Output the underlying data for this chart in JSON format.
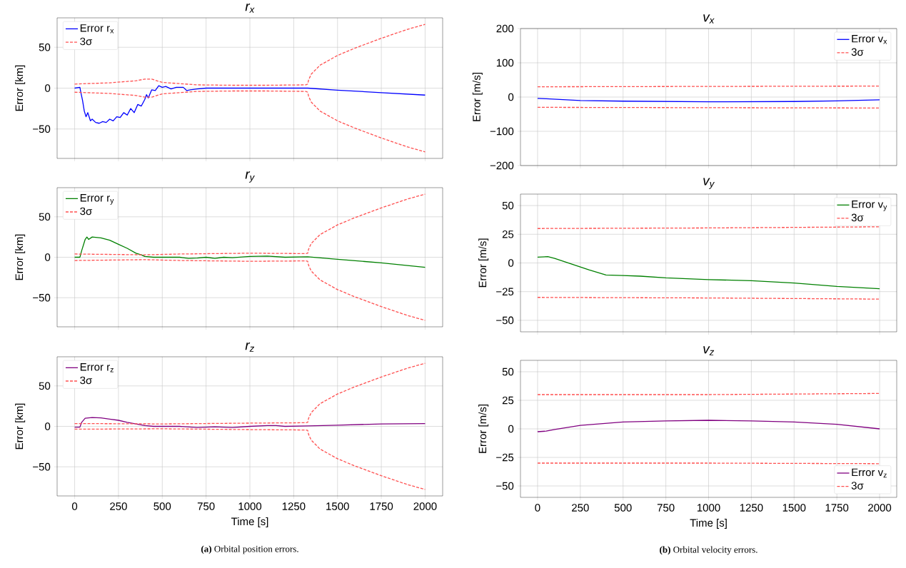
{
  "chart_data": [
    {
      "type": "line",
      "title": "r$_{x}$",
      "ylabel": "Error [km]",
      "xlim": [
        -100,
        2100
      ],
      "ylim": [
        -86,
        86
      ],
      "xticks": [
        0,
        250,
        500,
        750,
        1000,
        1250,
        1500,
        1750,
        2000
      ],
      "yticks": [
        {
          "value": -50,
          "label": "−50"
        },
        0,
        50
      ],
      "grid": true,
      "legend": "top left",
      "tick_labels": "y",
      "series": [
        {
          "name": "Error r$_{x}$",
          "color": "#0000ff",
          "line_style": "solid",
          "x": [
            0,
            30,
            35,
            45,
            55,
            65,
            75,
            90,
            100,
            120,
            140,
            160,
            180,
            200,
            220,
            240,
            260,
            280,
            300,
            320,
            340,
            360,
            380,
            400,
            410,
            420,
            440,
            460,
            480,
            500,
            520,
            550,
            580,
            620,
            640,
            660,
            700,
            750,
            800,
            900,
            1000,
            1100,
            1200,
            1330,
            1500,
            1750,
            2000
          ],
          "values": [
            0,
            1,
            -5,
            -15,
            -28,
            -35,
            -30,
            -40,
            -38,
            -42,
            -43,
            -41,
            -42,
            -38,
            -40,
            -35,
            -36,
            -30,
            -33,
            -25,
            -30,
            -20,
            -22,
            -14,
            -8,
            -12,
            -2,
            -3,
            3,
            1,
            2,
            -1,
            1,
            1,
            -3,
            -2,
            -1,
            0,
            0,
            0,
            0,
            0,
            0,
            0,
            -2.5,
            -5.5,
            -8.5
          ]
        },
        {
          "name": "3σ",
          "color": "#ff5050",
          "line_style": "dashed",
          "x": [
            0,
            200,
            350,
            400,
            440,
            500,
            700,
            900,
            1100,
            1320,
            1330,
            1335,
            1350,
            1400,
            1500,
            1600,
            1750,
            1900,
            2000
          ],
          "values": [
            5,
            6.5,
            9,
            11,
            11,
            7,
            4,
            3.5,
            3.5,
            4,
            5,
            10,
            17,
            28,
            40,
            49,
            61,
            72,
            78
          ]
        },
        {
          "color": "#ff5050",
          "line_style": "dashed",
          "x": [
            0,
            200,
            350,
            400,
            440,
            500,
            700,
            900,
            1100,
            1320,
            1330,
            1335,
            1350,
            1400,
            1500,
            1600,
            1750,
            1900,
            2000
          ],
          "values": [
            -5,
            -6.5,
            -9,
            -11,
            -11,
            -7,
            -4,
            -3.5,
            -3.5,
            -4,
            -5,
            -10,
            -17,
            -28,
            -40,
            -49,
            -61,
            -72,
            -78
          ]
        }
      ]
    },
    {
      "type": "line",
      "title": "r$_{y}$",
      "ylabel": "Error [km]",
      "xlim": [
        -100,
        2100
      ],
      "ylim": [
        -86,
        86
      ],
      "xticks": [
        0,
        250,
        500,
        750,
        1000,
        1250,
        1500,
        1750,
        2000
      ],
      "yticks": [
        {
          "value": -50,
          "label": "−50"
        },
        0,
        50
      ],
      "grid": true,
      "legend": "top left",
      "tick_labels": "y",
      "series": [
        {
          "name": "Error r$_{y}$",
          "color": "#008000",
          "line_style": "solid",
          "x": [
            0,
            30,
            40,
            50,
            60,
            70,
            80,
            100,
            150,
            200,
            250,
            300,
            350,
            380,
            400,
            450,
            500,
            600,
            650,
            700,
            750,
            800,
            850,
            900,
            1000,
            1100,
            1200,
            1330,
            1500,
            1750,
            2000
          ],
          "values": [
            0,
            0,
            8,
            15,
            22,
            25,
            22,
            25,
            24,
            21,
            16,
            11,
            5,
            3,
            1,
            0,
            0,
            0,
            -1.5,
            -1,
            0,
            -1.5,
            0,
            -0.5,
            1,
            1.5,
            0,
            0.5,
            -2.5,
            -7,
            -12.5
          ]
        },
        {
          "name": "3σ",
          "color": "#ff5050",
          "line_style": "dashed",
          "x": [
            0,
            400,
            600,
            1000,
            1320,
            1330,
            1335,
            1350,
            1400,
            1500,
            1600,
            1750,
            1900,
            2000
          ],
          "values": [
            4,
            3,
            4,
            5,
            4.5,
            5,
            10,
            17,
            28,
            40,
            49,
            61,
            72,
            78
          ]
        },
        {
          "color": "#ff5050",
          "line_style": "dashed",
          "x": [
            0,
            400,
            600,
            1000,
            1320,
            1330,
            1335,
            1350,
            1400,
            1500,
            1600,
            1750,
            1900,
            2000
          ],
          "values": [
            -4,
            -3,
            -4,
            -5,
            -4.5,
            -5,
            -10,
            -17,
            -28,
            -40,
            -49,
            -61,
            -72,
            -78
          ]
        }
      ]
    },
    {
      "type": "line",
      "title": "r$_{z}$",
      "xlabel": "Time [s]",
      "ylabel": "Error [km]",
      "xlim": [
        -100,
        2100
      ],
      "ylim": [
        -86,
        86
      ],
      "xticks": [
        0,
        250,
        500,
        750,
        1000,
        1250,
        1500,
        1750,
        2000
      ],
      "yticks": [
        {
          "value": -50,
          "label": "−50"
        },
        0,
        50
      ],
      "grid": true,
      "legend": "top left",
      "annotations": [
        "**(a)** Orbital position errors."
      ],
      "series": [
        {
          "name": "Error r$_{z}$",
          "color": "#800080",
          "line_style": "solid",
          "x": [
            0,
            30,
            40,
            60,
            100,
            150,
            200,
            250,
            300,
            350,
            400,
            450,
            600,
            700,
            800,
            900,
            1000,
            1100,
            1150,
            1200,
            1330,
            1500,
            1750,
            2000
          ],
          "values": [
            -1,
            -1,
            5,
            10,
            11,
            10.5,
            9,
            7.5,
            5,
            3,
            1,
            0,
            0,
            -1.5,
            -0.5,
            -1.5,
            0,
            1,
            1,
            0,
            0.5,
            1.5,
            3,
            3.5
          ]
        },
        {
          "name": "3σ",
          "color": "#ff5050",
          "line_style": "dashed",
          "x": [
            0,
            500,
            1000,
            1320,
            1330,
            1335,
            1350,
            1400,
            1500,
            1600,
            1750,
            1900,
            2000
          ],
          "values": [
            3.5,
            3,
            4,
            4.5,
            5,
            10,
            17,
            28,
            40,
            49,
            61,
            72,
            78
          ]
        },
        {
          "color": "#ff5050",
          "line_style": "dashed",
          "x": [
            0,
            500,
            1000,
            1320,
            1330,
            1335,
            1350,
            1400,
            1500,
            1600,
            1750,
            1900,
            2000
          ],
          "values": [
            -3.5,
            -3,
            -4,
            -4.5,
            -5,
            -10,
            -17,
            -28,
            -40,
            -49,
            -61,
            -72,
            -78
          ]
        }
      ]
    },
    {
      "type": "line",
      "title": "v$_{x}$",
      "ylabel": "Error [m/s]",
      "xlim": [
        -100,
        2100
      ],
      "ylim": [
        -200,
        200
      ],
      "xticks": [
        0,
        250,
        500,
        750,
        1000,
        1250,
        1500,
        1750,
        2000
      ],
      "yticks": [
        {
          "value": -200,
          "label": "−200"
        },
        {
          "value": -100,
          "label": "−100"
        },
        0,
        100,
        200
      ],
      "grid": true,
      "legend": "top right",
      "tick_labels": "y",
      "series": [
        {
          "name": "Error v$_{x}$",
          "color": "#0000ff",
          "line_style": "solid",
          "x": [
            0,
            50,
            250,
            500,
            1000,
            1500,
            1750,
            2000
          ],
          "values": [
            -4,
            -5,
            -10,
            -12,
            -14,
            -13,
            -11,
            -8
          ]
        },
        {
          "name": "3σ",
          "color": "#ff5050",
          "line_style": "dashed",
          "x": [
            0,
            1000,
            2000
          ],
          "values": [
            30,
            31,
            32
          ]
        },
        {
          "color": "#ff5050",
          "line_style": "dashed",
          "x": [
            0,
            1000,
            2000
          ],
          "values": [
            -30,
            -31,
            -32
          ]
        }
      ]
    },
    {
      "type": "line",
      "title": "v$_{y}$",
      "ylabel": "Error [m/s]",
      "xlim": [
        -100,
        2100
      ],
      "ylim": [
        -60,
        60
      ],
      "xticks": [
        0,
        250,
        500,
        750,
        1000,
        1250,
        1500,
        1750,
        2000
      ],
      "yticks": [
        {
          "value": -50,
          "label": "−50"
        },
        {
          "value": -25,
          "label": "−25"
        },
        0,
        25,
        50
      ],
      "grid": true,
      "legend": "top right",
      "tick_labels": "y",
      "series": [
        {
          "name": "Error v$_{y}$",
          "color": "#008000",
          "line_style": "solid",
          "x": [
            0,
            60,
            100,
            200,
            300,
            400,
            500,
            600,
            750,
            1000,
            1250,
            1500,
            1750,
            2000
          ],
          "values": [
            5,
            5.5,
            4,
            -1,
            -6,
            -10.5,
            -11,
            -11.5,
            -13,
            -14.5,
            -15.5,
            -17.5,
            -20.5,
            -22.5
          ]
        },
        {
          "name": "3σ",
          "color": "#ff5050",
          "line_style": "dashed",
          "x": [
            0,
            1000,
            2000
          ],
          "values": [
            30,
            30.5,
            31.5
          ]
        },
        {
          "color": "#ff5050",
          "line_style": "dashed",
          "x": [
            0,
            1000,
            2000
          ],
          "values": [
            -30,
            -30.5,
            -31.5
          ]
        }
      ]
    },
    {
      "type": "line",
      "title": "v$_{z}$",
      "xlabel": "Time [s]",
      "ylabel": "Error [m/s]",
      "xlim": [
        -100,
        2100
      ],
      "ylim": [
        -60,
        60
      ],
      "xticks": [
        0,
        250,
        500,
        750,
        1000,
        1250,
        1500,
        1750,
        2000
      ],
      "yticks": [
        {
          "value": -50,
          "label": "−50"
        },
        {
          "value": -25,
          "label": "−25"
        },
        0,
        25,
        50
      ],
      "grid": true,
      "legend": "bottom right",
      "annotations": [
        "**(b)** Orbital velocity errors."
      ],
      "series": [
        {
          "name": "Error v$_{z}$",
          "color": "#800080",
          "line_style": "solid",
          "x": [
            0,
            50,
            100,
            250,
            500,
            750,
            1000,
            1250,
            1500,
            1750,
            2000
          ],
          "values": [
            -2.5,
            -2,
            -0.5,
            3,
            6,
            7,
            7.5,
            7,
            6,
            4,
            0
          ]
        },
        {
          "name": "3σ",
          "color": "#ff5050",
          "line_style": "dashed",
          "x": [
            0,
            1000,
            2000
          ],
          "values": [
            30,
            30,
            31
          ]
        },
        {
          "color": "#ff5050",
          "line_style": "dashed",
          "x": [
            0,
            1000,
            2000
          ],
          "values": [
            -30,
            -30,
            -30.5
          ]
        }
      ]
    }
  ]
}
